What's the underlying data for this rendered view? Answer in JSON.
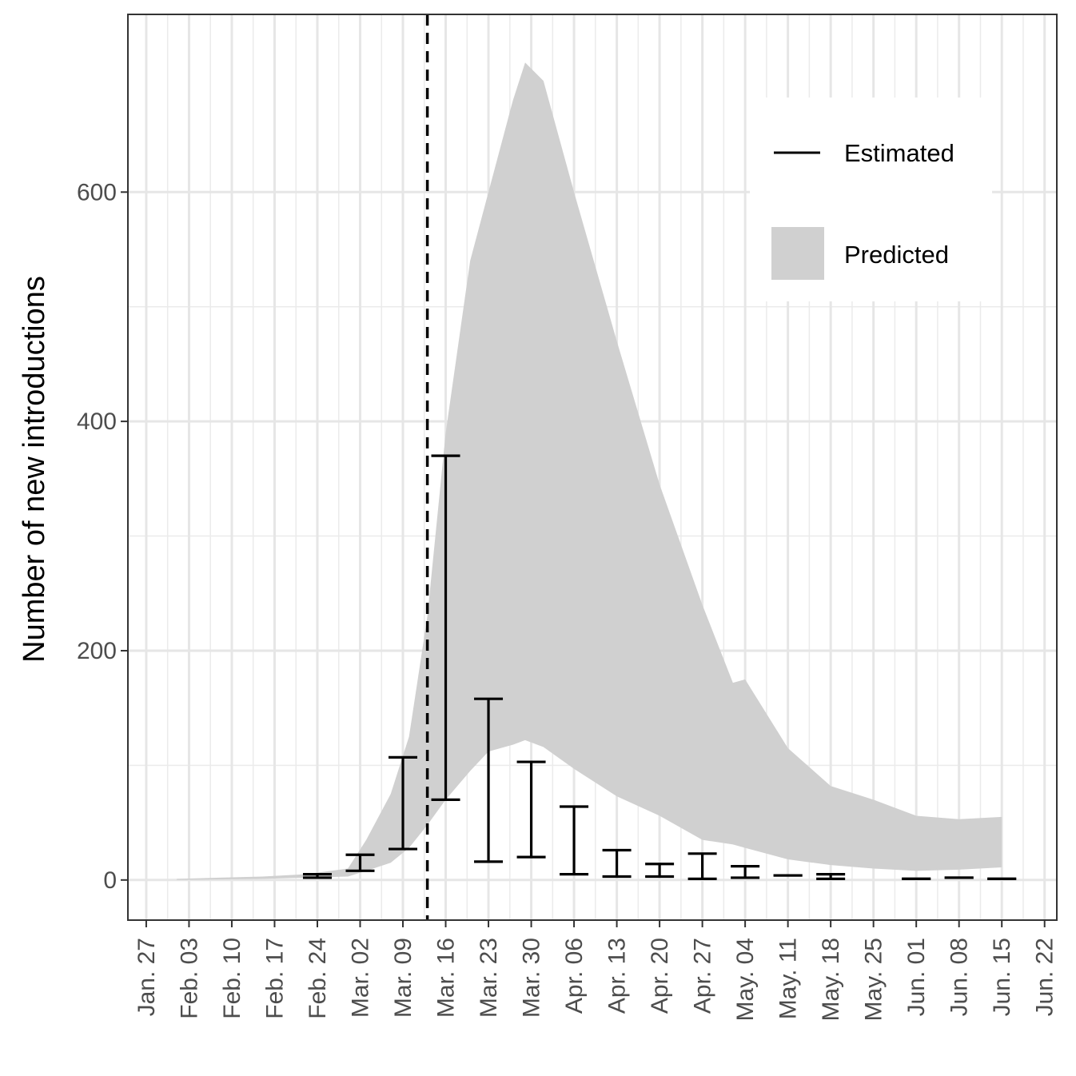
{
  "chart_data": {
    "type": "area",
    "title": "",
    "xlabel": "",
    "ylabel": "Number of new introductions",
    "x_ticks": [
      "Jan. 27",
      "Feb. 03",
      "Feb. 10",
      "Feb. 17",
      "Feb. 24",
      "Mar. 02",
      "Mar. 09",
      "Mar. 16",
      "Mar. 23",
      "Mar. 30",
      "Apr. 06",
      "Apr. 13",
      "Apr. 20",
      "Apr. 27",
      "May. 04",
      "May. 11",
      "May. 18",
      "May. 25",
      "Jun. 01",
      "Jun. 08",
      "Jun. 15",
      "Jun. 22"
    ],
    "x_tick_dates": [
      "2020-01-27",
      "2020-02-03",
      "2020-02-10",
      "2020-02-17",
      "2020-02-24",
      "2020-03-02",
      "2020-03-09",
      "2020-03-16",
      "2020-03-23",
      "2020-03-30",
      "2020-04-06",
      "2020-04-13",
      "2020-04-20",
      "2020-04-27",
      "2020-05-04",
      "2020-05-11",
      "2020-05-18",
      "2020-05-25",
      "2020-06-01",
      "2020-06-08",
      "2020-06-15",
      "2020-06-22"
    ],
    "xlim": [
      "2020-01-24",
      "2020-06-24"
    ],
    "ylim": [
      -35,
      755
    ],
    "y_ticks": [
      0,
      200,
      400,
      600
    ],
    "grid": true,
    "legend_position": "top-right",
    "vline": {
      "x": "2020-03-13",
      "style": "dashed"
    },
    "series": [
      {
        "name": "Predicted",
        "kind": "ribbon",
        "color": "#d0d0d0",
        "x": [
          "2020-02-01",
          "2020-02-08",
          "2020-02-15",
          "2020-02-22",
          "2020-02-29",
          "2020-03-03",
          "2020-03-07",
          "2020-03-10",
          "2020-03-13",
          "2020-03-16",
          "2020-03-20",
          "2020-03-23",
          "2020-03-27",
          "2020-03-29",
          "2020-04-01",
          "2020-04-06",
          "2020-04-13",
          "2020-04-20",
          "2020-04-27",
          "2020-05-02",
          "2020-05-04",
          "2020-05-11",
          "2020-05-18",
          "2020-05-25",
          "2020-06-01",
          "2020-06-08",
          "2020-06-15"
        ],
        "ymin": [
          0,
          0.5,
          1,
          2,
          3,
          8,
          15,
          28,
          48,
          70,
          95,
          112,
          118,
          122,
          116,
          97,
          73,
          56,
          35,
          31,
          28,
          18,
          13,
          10,
          8,
          9,
          11
        ],
        "ymax": [
          1,
          2,
          3,
          5,
          10,
          35,
          75,
          125,
          230,
          390,
          540,
          600,
          680,
          713,
          697,
          600,
          470,
          345,
          240,
          172,
          175,
          115,
          82,
          70,
          56,
          53,
          55
        ]
      },
      {
        "name": "Estimated",
        "kind": "errorbar",
        "color": "#000000",
        "x": [
          "2020-02-24",
          "2020-03-02",
          "2020-03-09",
          "2020-03-16",
          "2020-03-23",
          "2020-03-30",
          "2020-04-06",
          "2020-04-13",
          "2020-04-20",
          "2020-04-27",
          "2020-05-04",
          "2020-05-11",
          "2020-05-18",
          "2020-06-01",
          "2020-06-08",
          "2020-06-15"
        ],
        "ymin": [
          2,
          8,
          27,
          70,
          16,
          20,
          5,
          3,
          3,
          1,
          2,
          4,
          1,
          1,
          2,
          1
        ],
        "ymax": [
          5,
          22,
          107,
          370,
          158,
          103,
          64,
          26,
          14,
          23,
          12,
          4,
          5,
          1,
          2,
          1
        ]
      }
    ]
  },
  "legend": {
    "items": [
      {
        "label": "Estimated",
        "kind": "line"
      },
      {
        "label": "Predicted",
        "kind": "fill"
      }
    ]
  }
}
